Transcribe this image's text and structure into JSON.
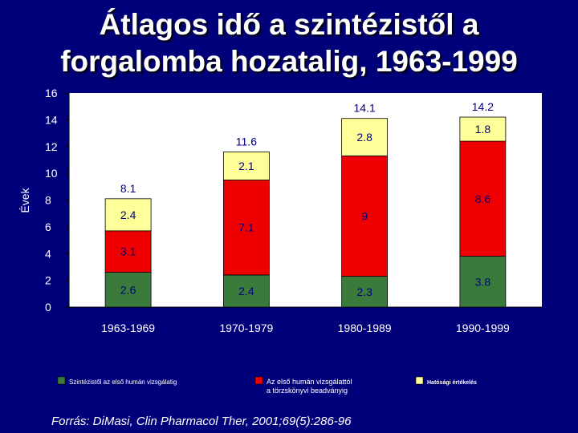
{
  "title": {
    "line1": "Átlagos idő a szintézistől a",
    "line2": "forgalomba hozatalig, 1963-1999"
  },
  "source": "Forrás: DiMasi, Clin Pharmacol Ther, 2001;69(5):286-96",
  "colors": {
    "background": "#00007a",
    "plot_bg": "#ffffff",
    "green": "#3a7a3a",
    "red": "#ee0000",
    "yellow": "#ffff99",
    "text": "#ffffff",
    "plot_text": "#000080"
  },
  "chart_data": {
    "type": "bar",
    "stacked": true,
    "ylabel": "Évek",
    "xlabel": "",
    "ylim": [
      0,
      16
    ],
    "yticks": [
      "0",
      "2",
      "4",
      "6",
      "8",
      "10",
      "12",
      "14",
      "16"
    ],
    "grid": false,
    "legend_position": "bottom",
    "categories": [
      "1963-1969",
      "1970-1979",
      "1980-1989",
      "1990-1999"
    ],
    "series": [
      {
        "name": "Szintézistől az első humán vizsgálatig",
        "color": "#3a7a3a",
        "values": [
          2.6,
          2.4,
          2.3,
          3.8
        ],
        "labels": [
          "2.6",
          "2.4",
          "2.3",
          "3.8"
        ]
      },
      {
        "name": "Az első humán vizsgálattól a törzskönyvi beadványig",
        "color": "#ee0000",
        "values": [
          3.1,
          7.1,
          9,
          8.6
        ],
        "labels": [
          "3.1",
          "7.1",
          "9",
          "8.6"
        ]
      },
      {
        "name": "Hatósági értékelés",
        "color": "#ffff99",
        "values": [
          2.4,
          2.1,
          2.8,
          1.8
        ],
        "labels": [
          "2.4",
          "2.1",
          "2.8",
          "1.8"
        ]
      }
    ],
    "totals": [
      8.1,
      11.6,
      14.1,
      14.2
    ],
    "total_labels": [
      "8.1",
      "11.6",
      "14.1",
      "14.2"
    ]
  }
}
